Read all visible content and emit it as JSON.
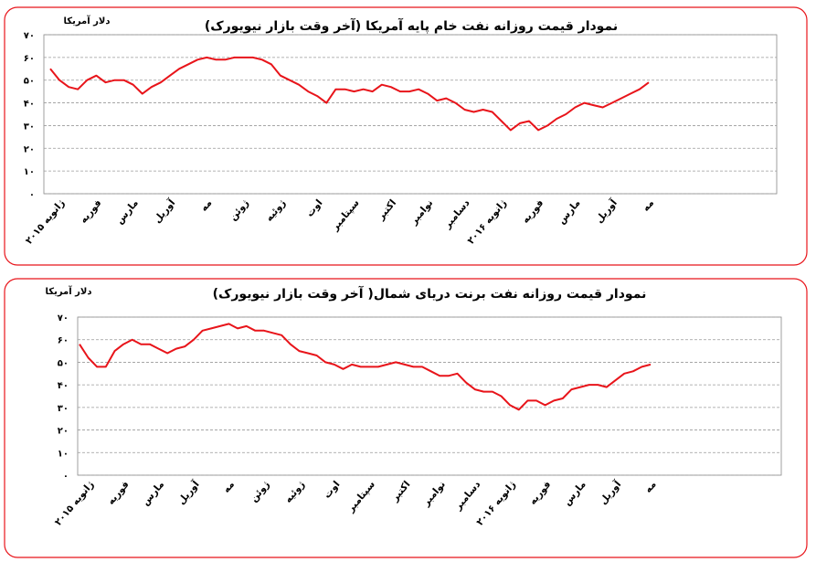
{
  "chart_data": [
    {
      "type": "line",
      "title": "نمودار قیمت روزانه نفت خام پایه آمریکا (آخر وقت بازار نیویورک)",
      "y_label": "دلار آمریکا",
      "categories": [
        "ژانویه ۲۰۱۵",
        null,
        null,
        null,
        "فوریه",
        null,
        null,
        null,
        "مارس",
        null,
        null,
        null,
        "آوریل",
        null,
        null,
        null,
        "مه",
        null,
        null,
        null,
        "ژوئن",
        null,
        null,
        null,
        "ژوئیه",
        null,
        null,
        null,
        "اوت",
        null,
        null,
        null,
        "سپتامبر",
        null,
        null,
        null,
        "اکتبر",
        null,
        null,
        null,
        "نوامبر",
        null,
        null,
        null,
        "دسامبر",
        null,
        null,
        null,
        "ژانویه ۲۰۱۶",
        null,
        null,
        null,
        "فوریه",
        null,
        null,
        null,
        "مارس",
        null,
        null,
        null,
        "آوریل",
        null,
        null,
        null,
        "مه",
        null
      ],
      "values": [
        55,
        50,
        47,
        46,
        50,
        52,
        49,
        50,
        50,
        48,
        44,
        47,
        49,
        52,
        55,
        57,
        59,
        60,
        59,
        59,
        60,
        60,
        60,
        59,
        57,
        52,
        50,
        48,
        45,
        43,
        40,
        46,
        46,
        45,
        46,
        45,
        48,
        47,
        45,
        45,
        46,
        44,
        41,
        42,
        40,
        37,
        36,
        37,
        36,
        32,
        28,
        31,
        32,
        28,
        30,
        33,
        35,
        38,
        40,
        39,
        38,
        40,
        42,
        44,
        46,
        49
      ],
      "color": "#e8141a",
      "ylim": [
        0,
        70
      ],
      "yticks": [
        {
          "value": 0,
          "label": "۰"
        },
        {
          "value": 10,
          "label": "۱۰"
        },
        {
          "value": 20,
          "label": "۲۰"
        },
        {
          "value": 30,
          "label": "۳۰"
        },
        {
          "value": 40,
          "label": "۴۰"
        },
        {
          "value": 50,
          "label": "۵۰"
        },
        {
          "value": 60,
          "label": "۶۰"
        },
        {
          "value": 70,
          "label": "۷۰"
        }
      ],
      "grid": true
    },
    {
      "type": "line",
      "title": "نمودار قیمت روزانه نفت برنت دریای شمال( آخر وقت بازار نیویورک)",
      "y_label": "دلار آمریکا",
      "categories": [
        "ژانویه ۲۰۱۵",
        null,
        null,
        null,
        "فوریه",
        null,
        null,
        null,
        "مارس",
        null,
        null,
        null,
        "آوریل",
        null,
        null,
        null,
        "مه",
        null,
        null,
        null,
        "ژوئن",
        null,
        null,
        null,
        "ژوئیه",
        null,
        null,
        null,
        "اوت",
        null,
        null,
        null,
        "سپتامبر",
        null,
        null,
        null,
        "اکتبر",
        null,
        null,
        null,
        "نوامبر",
        null,
        null,
        null,
        "دسامبر",
        null,
        null,
        null,
        "ژانویه ۲۰۱۶",
        null,
        null,
        null,
        "فوریه",
        null,
        null,
        null,
        "مارس",
        null,
        null,
        null,
        "آوریل",
        null,
        null,
        null,
        "مه",
        null
      ],
      "values": [
        58,
        52,
        48,
        48,
        55,
        58,
        60,
        58,
        58,
        56,
        54,
        56,
        57,
        60,
        64,
        65,
        66,
        67,
        65,
        66,
        64,
        64,
        63,
        62,
        58,
        55,
        54,
        53,
        50,
        49,
        47,
        49,
        48,
        48,
        48,
        49,
        50,
        49,
        48,
        48,
        46,
        44,
        44,
        45,
        41,
        38,
        37,
        37,
        35,
        31,
        29,
        33,
        33,
        31,
        33,
        34,
        38,
        39,
        40,
        40,
        39,
        42,
        45,
        46,
        48,
        49
      ],
      "color": "#e8141a",
      "ylim": [
        0,
        70
      ],
      "yticks": [
        {
          "value": 0,
          "label": "۰"
        },
        {
          "value": 10,
          "label": "۱۰"
        },
        {
          "value": 20,
          "label": "۲۰"
        },
        {
          "value": 30,
          "label": "۳۰"
        },
        {
          "value": 40,
          "label": "۴۰"
        },
        {
          "value": 50,
          "label": "۵۰"
        },
        {
          "value": 60,
          "label": "۶۰"
        },
        {
          "value": 70,
          "label": "۷۰"
        }
      ],
      "grid": true
    }
  ]
}
